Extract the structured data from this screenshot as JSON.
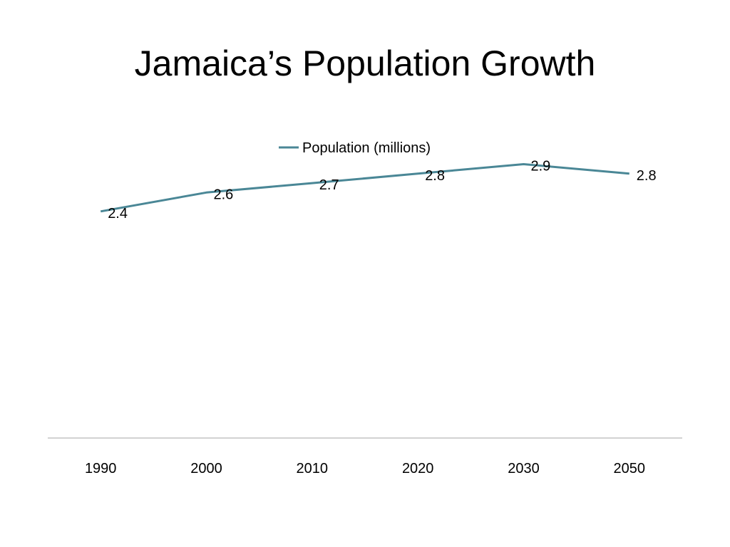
{
  "slide": {
    "title": "Jamaica’s Population Growth"
  },
  "colors": {
    "series_line": "#4a8796",
    "axis_line": "#a6a6a6",
    "text": "#000000",
    "background": "#ffffff"
  },
  "chart_data": {
    "type": "line",
    "title": "",
    "xlabel": "",
    "ylabel": "",
    "categories": [
      "1990",
      "2000",
      "2010",
      "2020",
      "2030",
      "2050"
    ],
    "series": [
      {
        "name": "Population (millions)",
        "values": [
          2.4,
          2.6,
          2.7,
          2.8,
          2.9,
          2.8
        ],
        "labels": [
          "2.4",
          "2.6",
          "2.7",
          "2.8",
          "2.9",
          "2.8"
        ]
      }
    ],
    "ylim": [
      0,
      3.5
    ],
    "grid": false,
    "y_axis_visible": false,
    "data_labels": true,
    "legend_placement": "top"
  }
}
